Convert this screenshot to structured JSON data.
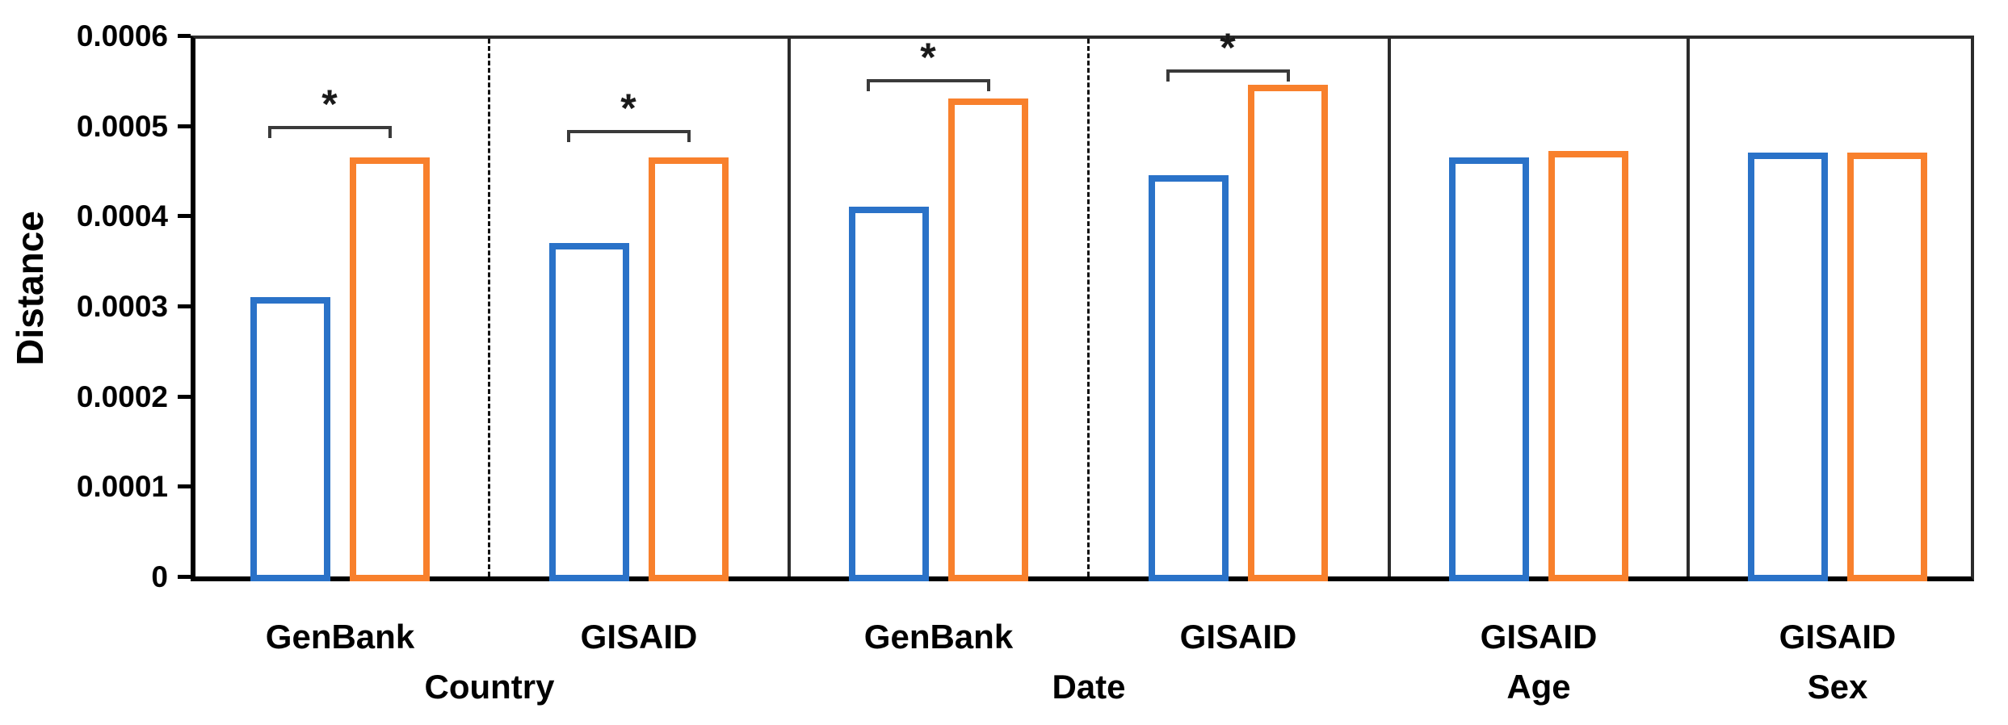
{
  "chart_data": {
    "type": "bar",
    "title": "",
    "xlabel": "",
    "ylabel": "Distance",
    "ylim": [
      0,
      0.0006
    ],
    "ytick_values": [
      0,
      0.0001,
      0.0002,
      0.0003,
      0.0004,
      0.0005,
      0.0006
    ],
    "ytick_labels": [
      "0",
      "0.0001",
      "0.0002",
      "0.0003",
      "0.0004",
      "0.0005",
      "0.0006"
    ],
    "grid": false,
    "legend_position": "none",
    "series": [
      {
        "name": "series-1-blue-outline",
        "color": "#2A72C8"
      },
      {
        "name": "series-2-orange-outline",
        "color": "#F8802C"
      }
    ],
    "categories": [
      "GenBank",
      "GISAID",
      "GenBank",
      "GISAID",
      "GISAID",
      "GISAID"
    ],
    "groups": [
      {
        "label": "GenBank",
        "section": "Country",
        "values": [
          0.00031,
          0.000465
        ],
        "significant": true,
        "marker": "*",
        "bracket_y": 0.0005
      },
      {
        "label": "GISAID",
        "section": "Country",
        "values": [
          0.00037,
          0.000465
        ],
        "significant": true,
        "marker": "*",
        "bracket_y": 0.000495
      },
      {
        "label": "GenBank",
        "section": "Date",
        "values": [
          0.00041,
          0.00053
        ],
        "significant": true,
        "marker": "*",
        "bracket_y": 0.000552
      },
      {
        "label": "GISAID",
        "section": "Date",
        "values": [
          0.000445,
          0.000545
        ],
        "significant": true,
        "marker": "*",
        "bracket_y": 0.000562
      },
      {
        "label": "GISAID",
        "section": "Age",
        "values": [
          0.000465,
          0.000472
        ],
        "significant": false,
        "marker": "",
        "bracket_y": null
      },
      {
        "label": "GISAID",
        "section": "Sex",
        "values": [
          0.00047,
          0.00047
        ],
        "significant": false,
        "marker": "",
        "bracket_y": null
      }
    ],
    "sections": [
      {
        "label": "Country",
        "group_indexes": [
          0,
          1
        ]
      },
      {
        "label": "Date",
        "group_indexes": [
          2,
          3
        ]
      },
      {
        "label": "Age",
        "group_indexes": [
          4
        ]
      },
      {
        "label": "Sex",
        "group_indexes": [
          5
        ]
      }
    ],
    "separators_after_group": [
      {
        "after": 0,
        "style": "dashed"
      },
      {
        "after": 1,
        "style": "solid"
      },
      {
        "after": 2,
        "style": "dashed"
      },
      {
        "after": 3,
        "style": "solid"
      },
      {
        "after": 4,
        "style": "solid"
      }
    ],
    "axis_color": "#000000",
    "bracket_color": "#3a3a3a"
  }
}
